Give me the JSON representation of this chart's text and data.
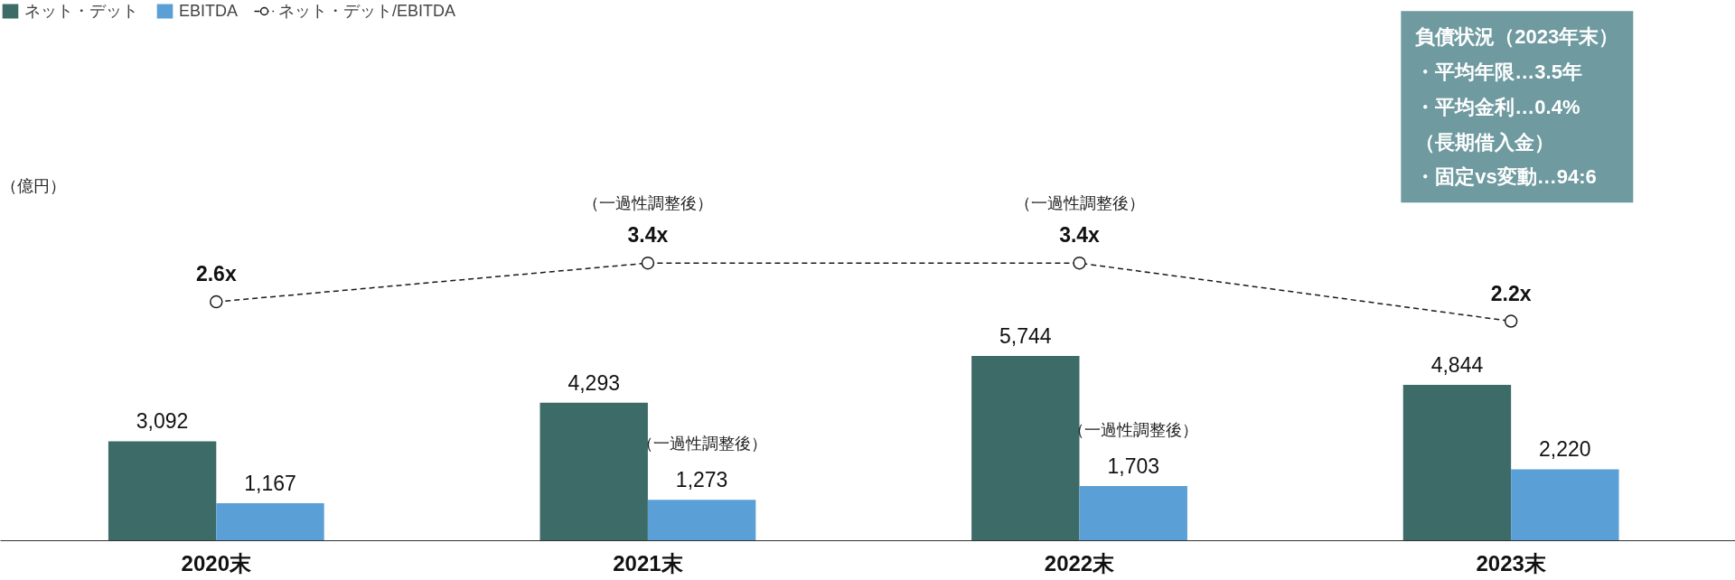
{
  "chart_data": {
    "type": "bar",
    "categories": [
      "2020末",
      "2021末",
      "2022末",
      "2023末"
    ],
    "ylim": [
      0,
      16800
    ],
    "y2lim": [
      -2.33,
      8.82
    ],
    "tick_labels": "x",
    "grid": false,
    "legend": "top left",
    "series": [
      {
        "name": "ネット・デット",
        "color": "#3d6b67",
        "values": [
          3092,
          4293,
          5744,
          4844
        ],
        "value_labels": [
          "3,092",
          "4,293",
          "5,744",
          "4,844"
        ]
      },
      {
        "name": "EBITDA",
        "color": "#5a9fd6",
        "values": [
          1167,
          1273,
          1703,
          2220
        ],
        "value_labels": [
          "1,167",
          "1,273",
          "1,703",
          "2,220"
        ]
      },
      {
        "name": "ネット・デット/EBITDA",
        "type": "line",
        "axis": "y2",
        "color": "#1a1a1a",
        "line_style": "dashed",
        "marker": "circle",
        "values": [
          2.6,
          3.4,
          3.4,
          2.2
        ],
        "value_labels": [
          "2.6x",
          "3.4x",
          "3.4x",
          "2.2x"
        ]
      }
    ],
    "annotations": [
      "（億円）",
      "負債状況（2023年末）",
      "・平均年限…3.5年",
      "・平均金利…0.4%",
      "（長期借入金）",
      "・固定vs変動…94:6",
      "（一過性調整後）",
      "（一過性調整後）",
      {
        "text": "（一過性調整後）",
        "x": "2021末",
        "y": 1273
      },
      {
        "text": "（一過性調整後）",
        "x": "2022末",
        "y": 1703
      }
    ]
  }
}
